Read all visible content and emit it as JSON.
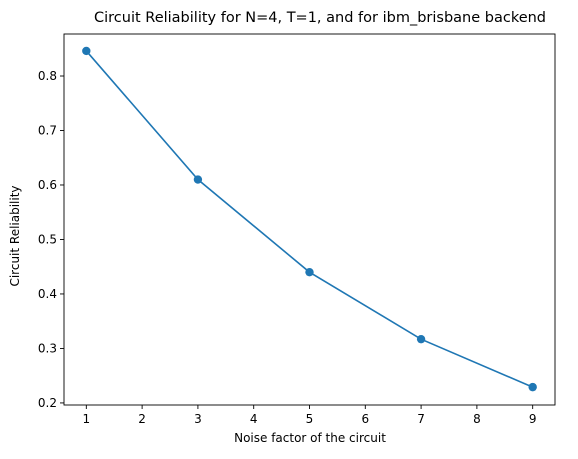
{
  "chart_data": {
    "type": "line",
    "title": "Circuit Reliability for N=4, T=1, and for ibm_brisbane backend",
    "xlabel": "Noise factor of the circuit",
    "ylabel": "Circuit Reliability",
    "x": [
      1,
      3,
      5,
      7,
      9
    ],
    "series": [
      {
        "values": [
          0.846,
          0.61,
          0.44,
          0.317,
          0.229
        ],
        "color": "#1f77b4",
        "marker": "circle"
      }
    ],
    "xticks": [
      "1",
      "2",
      "3",
      "4",
      "5",
      "6",
      "7",
      "8",
      "9"
    ],
    "yticks": [
      "0.2",
      "0.3",
      "0.4",
      "0.5",
      "0.6",
      "0.7",
      "0.8"
    ],
    "xlim": [
      0.6,
      9.4
    ],
    "ylim": [
      0.1962,
      0.8771
    ],
    "grid": false
  }
}
